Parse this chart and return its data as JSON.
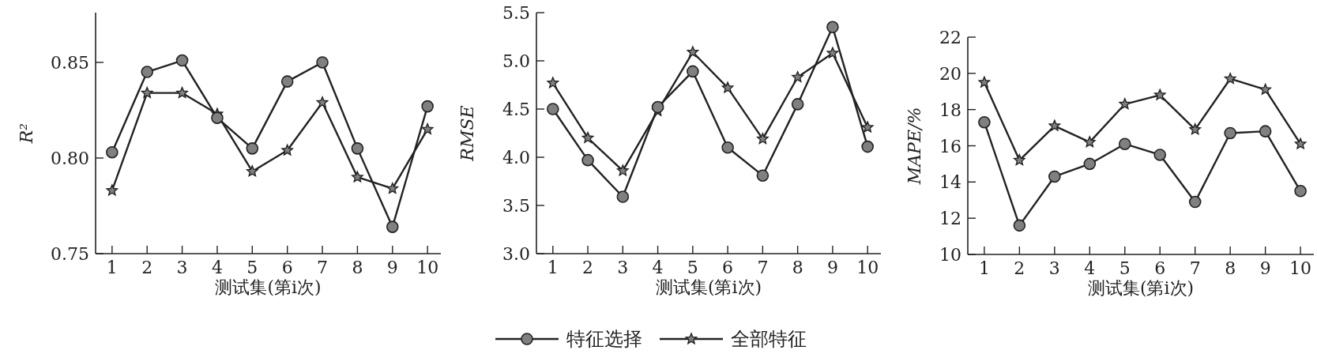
{
  "chart_data": [
    {
      "type": "line",
      "ylabel": "R²",
      "xlabel": "测试集(第i次)",
      "categories": [
        "1",
        "2",
        "3",
        "4",
        "5",
        "6",
        "7",
        "8",
        "9",
        "10"
      ],
      "ylim": [
        0.75,
        0.876
      ],
      "yticks": [
        {
          "value": 0.75,
          "label": "0.75"
        },
        {
          "value": 0.8,
          "label": "0.80"
        },
        {
          "value": 0.85,
          "label": "0.85"
        }
      ],
      "grid": false,
      "legend": "bottom",
      "series": [
        {
          "name": "特征选择",
          "color": "#808080",
          "marker": "circle",
          "values": [
            0.803,
            0.845,
            0.851,
            0.821,
            0.805,
            0.84,
            0.85,
            0.805,
            0.764,
            0.827
          ]
        },
        {
          "name": "全部特征",
          "color": "#808080",
          "marker": "star",
          "values": [
            0.783,
            0.834,
            0.834,
            0.823,
            0.793,
            0.804,
            0.829,
            0.79,
            0.784,
            0.815
          ]
        }
      ]
    },
    {
      "type": "line",
      "ylabel": "RMSE",
      "xlabel": "测试集(第i次)",
      "categories": [
        "1",
        "2",
        "3",
        "4",
        "5",
        "6",
        "7",
        "8",
        "9",
        "10"
      ],
      "ylim": [
        3.0,
        5.5
      ],
      "yticks": [
        {
          "value": 3.0,
          "label": "3.0"
        },
        3.5,
        {
          "value": 4.0,
          "label": "4.0"
        },
        4.5,
        {
          "value": 5.0,
          "label": "5.0"
        },
        5.5
      ],
      "grid": false,
      "series": [
        {
          "color": "#808080",
          "marker": "circle",
          "values": [
            4.5,
            3.97,
            3.59,
            4.52,
            4.89,
            4.1,
            3.81,
            4.55,
            5.35,
            4.11
          ]
        },
        {
          "color": "#808080",
          "marker": "star",
          "values": [
            4.77,
            4.2,
            3.86,
            4.48,
            5.09,
            4.72,
            4.19,
            4.83,
            5.08,
            4.31
          ]
        }
      ]
    },
    {
      "type": "line",
      "ylabel": "MAPE/%",
      "xlabel": "测试集(第i次)",
      "categories": [
        "1",
        "2",
        "3",
        "4",
        "5",
        "6",
        "7",
        "8",
        "9",
        "10"
      ],
      "ylim": [
        10,
        22
      ],
      "yticks": [
        10,
        12,
        14,
        16,
        18,
        20,
        22
      ],
      "grid": false,
      "series": [
        {
          "color": "#808080",
          "marker": "circle",
          "values": [
            17.3,
            11.6,
            14.3,
            15.0,
            16.1,
            15.5,
            12.9,
            16.7,
            16.8,
            13.5
          ]
        },
        {
          "color": "#808080",
          "marker": "star",
          "values": [
            19.5,
            15.2,
            17.1,
            16.2,
            18.3,
            18.8,
            16.9,
            19.7,
            19.1,
            16.1
          ]
        }
      ]
    }
  ]
}
